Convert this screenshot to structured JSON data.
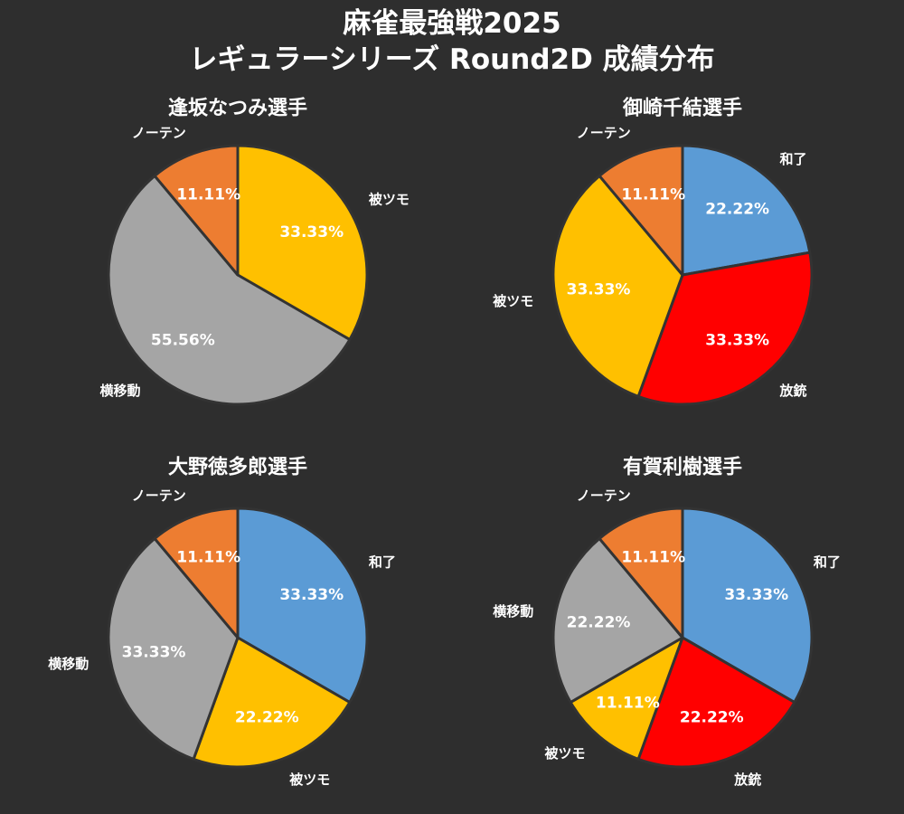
{
  "title_line1": "麻雀最強戦2025",
  "title_line2": "レギュラーシリーズ Round2D 成績分布",
  "colors": {
    "background": "#2e2e2e",
    "和了": "#5b9bd5",
    "放銃": "#ff0000",
    "被ツモ": "#ffc000",
    "横移動": "#a5a5a5",
    "ノーテン": "#ed7d31",
    "edge": "#333333"
  },
  "chart_data": [
    {
      "type": "pie",
      "title": "逢坂なつみ選手",
      "slices": [
        {
          "label": "被ツモ",
          "value": 33.33,
          "pct_label": "33.33%"
        },
        {
          "label": "横移動",
          "value": 55.56,
          "pct_label": "55.56%"
        },
        {
          "label": "ノーテン",
          "value": 11.11,
          "pct_label": "11.11%"
        }
      ]
    },
    {
      "type": "pie",
      "title": "御崎千結選手",
      "slices": [
        {
          "label": "和了",
          "value": 22.22,
          "pct_label": "22.22%"
        },
        {
          "label": "放銃",
          "value": 33.33,
          "pct_label": "33.33%"
        },
        {
          "label": "被ツモ",
          "value": 33.33,
          "pct_label": "33.33%"
        },
        {
          "label": "ノーテン",
          "value": 11.11,
          "pct_label": "11.11%"
        }
      ]
    },
    {
      "type": "pie",
      "title": "大野徳多郎選手",
      "slices": [
        {
          "label": "和了",
          "value": 33.33,
          "pct_label": "33.33%"
        },
        {
          "label": "被ツモ",
          "value": 22.22,
          "pct_label": "22.22%"
        },
        {
          "label": "横移動",
          "value": 33.33,
          "pct_label": "33.33%"
        },
        {
          "label": "ノーテン",
          "value": 11.11,
          "pct_label": "11.11%"
        }
      ]
    },
    {
      "type": "pie",
      "title": "有賀利樹選手",
      "slices": [
        {
          "label": "和了",
          "value": 33.33,
          "pct_label": "33.33%"
        },
        {
          "label": "放銃",
          "value": 22.22,
          "pct_label": "22.22%"
        },
        {
          "label": "被ツモ",
          "value": 11.11,
          "pct_label": "11.11%"
        },
        {
          "label": "横移動",
          "value": 22.22,
          "pct_label": "22.22%"
        },
        {
          "label": "ノーテン",
          "value": 11.11,
          "pct_label": "11.11%"
        }
      ]
    }
  ]
}
